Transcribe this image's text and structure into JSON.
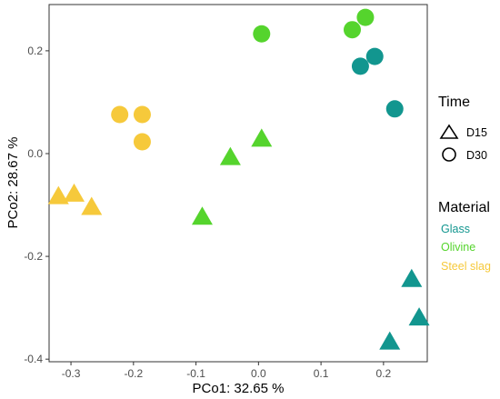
{
  "chart_data": {
    "type": "scatter",
    "title": "",
    "xlabel": "PCo1:  32.65 %",
    "ylabel": "PCo2:  28.67 %",
    "xlim": [
      -0.335,
      0.27
    ],
    "ylim": [
      -0.405,
      0.29
    ],
    "x_ticks": [
      -0.3,
      -0.2,
      -0.1,
      0.0,
      0.1,
      0.2
    ],
    "x_tick_labels": [
      "-0.3",
      "-0.2",
      "-0.1",
      "0.0",
      "0.1",
      "0.2"
    ],
    "y_ticks": [
      -0.4,
      -0.2,
      0.0,
      0.2
    ],
    "y_tick_labels": [
      "-0.4",
      "-0.2",
      "0.0",
      "0.2"
    ],
    "grid": false,
    "legend_placement": "right",
    "legend": {
      "time": {
        "title": "Time",
        "entries": [
          {
            "label": "D15",
            "shape": "triangle"
          },
          {
            "label": "D30",
            "shape": "circle"
          }
        ]
      },
      "material": {
        "title": "Material",
        "entries": [
          {
            "label": "Glass",
            "color": "#12968f"
          },
          {
            "label": "Olivine",
            "color": "#55d42d"
          },
          {
            "label": "Steel slag",
            "color": "#f6c93b"
          }
        ]
      }
    },
    "points": [
      {
        "material": "Glass",
        "time": "D30",
        "x": 0.163,
        "y": 0.17
      },
      {
        "material": "Glass",
        "time": "D30",
        "x": 0.186,
        "y": 0.189
      },
      {
        "material": "Glass",
        "time": "D30",
        "x": 0.218,
        "y": 0.087
      },
      {
        "material": "Glass",
        "time": "D15",
        "x": 0.21,
        "y": -0.368
      },
      {
        "material": "Glass",
        "time": "D15",
        "x": 0.245,
        "y": -0.246
      },
      {
        "material": "Glass",
        "time": "D15",
        "x": 0.257,
        "y": -0.321
      },
      {
        "material": "Olivine",
        "time": "D30",
        "x": 0.005,
        "y": 0.233
      },
      {
        "material": "Olivine",
        "time": "D30",
        "x": 0.15,
        "y": 0.241
      },
      {
        "material": "Olivine",
        "time": "D30",
        "x": 0.171,
        "y": 0.265
      },
      {
        "material": "Olivine",
        "time": "D15",
        "x": 0.005,
        "y": 0.027
      },
      {
        "material": "Olivine",
        "time": "D15",
        "x": -0.045,
        "y": -0.009
      },
      {
        "material": "Olivine",
        "time": "D15",
        "x": -0.09,
        "y": -0.125
      },
      {
        "material": "Steel slag",
        "time": "D30",
        "x": -0.222,
        "y": 0.076
      },
      {
        "material": "Steel slag",
        "time": "D30",
        "x": -0.186,
        "y": 0.076
      },
      {
        "material": "Steel slag",
        "time": "D30",
        "x": -0.186,
        "y": 0.023
      },
      {
        "material": "Steel slag",
        "time": "D15",
        "x": -0.32,
        "y": -0.085
      },
      {
        "material": "Steel slag",
        "time": "D15",
        "x": -0.295,
        "y": -0.08
      },
      {
        "material": "Steel slag",
        "time": "D15",
        "x": -0.267,
        "y": -0.106
      }
    ]
  }
}
